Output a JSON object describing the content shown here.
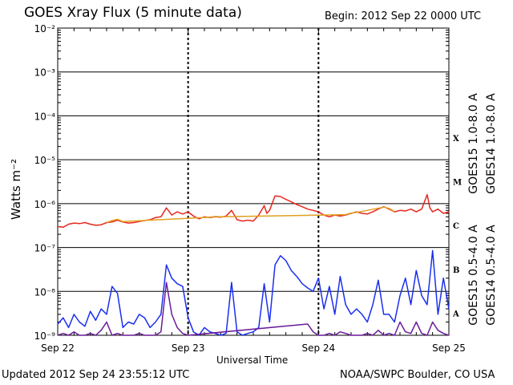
{
  "header": {
    "title": "GOES Xray Flux (5 minute data)",
    "begin": "Begin:  2012 Sep 22 0000 UTC"
  },
  "footer": {
    "updated": "Updated 2012 Sep 24 23:55:12 UTC",
    "credit": "NOAA/SWPC Boulder, CO USA"
  },
  "colors": {
    "goes15_long": "#e8281e",
    "goes14_long": "#e0a020",
    "goes15_short": "#1a2ff0",
    "goes14_short": "#6a1a9a",
    "grid": "#000000"
  },
  "chart_data": {
    "type": "line",
    "title": "GOES Xray Flux (5 minute data)",
    "xlabel": "Universal Time",
    "ylabel": "Watts m⁻²",
    "yscale": "log",
    "ylim": [
      1e-09,
      0.01
    ],
    "xlim": [
      0,
      72
    ],
    "x_unit": "hours since 2012 Sep 22 0000 UTC",
    "x_ticks": [
      {
        "x": 0,
        "label": "Sep 22"
      },
      {
        "x": 24,
        "label": "Sep 23"
      },
      {
        "x": 48,
        "label": "Sep 24"
      },
      {
        "x": 72,
        "label": "Sep 25"
      }
    ],
    "y_ticks": [
      {
        "exp": -9,
        "label": "10⁻⁹"
      },
      {
        "exp": -8,
        "label": "10⁻⁸"
      },
      {
        "exp": -7,
        "label": "10⁻⁷"
      },
      {
        "exp": -6,
        "label": "10⁻⁶"
      },
      {
        "exp": -5,
        "label": "10⁻⁵"
      },
      {
        "exp": -4,
        "label": "10⁻⁴"
      },
      {
        "exp": -3,
        "label": "10⁻³"
      },
      {
        "exp": -2,
        "label": "10⁻²"
      }
    ],
    "flare_classes": [
      {
        "label": "A",
        "exp": -8
      },
      {
        "label": "B",
        "exp": -7
      },
      {
        "label": "C",
        "exp": -6
      },
      {
        "label": "M",
        "exp": -5
      },
      {
        "label": "X",
        "exp": -4
      }
    ],
    "grid": true,
    "legend_position": "right",
    "series": [
      {
        "name": "GOES15 1.0-8.0 A",
        "color": "#e8281e",
        "x": [
          0,
          1,
          2,
          3,
          4,
          5,
          6,
          7,
          8,
          9,
          10,
          11,
          12,
          13,
          14,
          15,
          16,
          17,
          18,
          19,
          20,
          21,
          22,
          23,
          24,
          25,
          26,
          27,
          28,
          29,
          30,
          31,
          32,
          33,
          34,
          35,
          36,
          37,
          38,
          38.5,
          39,
          40,
          41,
          42,
          43,
          44,
          45,
          46,
          47,
          48,
          49,
          50,
          51,
          52,
          53,
          54,
          55,
          56,
          57,
          58,
          59,
          60,
          61,
          62,
          63,
          64,
          65,
          66,
          67,
          68,
          68.5,
          69,
          70,
          71,
          72
        ],
        "y": [
          3e-07,
          2.9e-07,
          3.4e-07,
          3.6e-07,
          3.5e-07,
          3.7e-07,
          3.4e-07,
          3.2e-07,
          3.3e-07,
          3.7e-07,
          3.8e-07,
          4.2e-07,
          3.8e-07,
          3.6e-07,
          3.7e-07,
          3.9e-07,
          4.1e-07,
          4.3e-07,
          4.8e-07,
          5e-07,
          8e-07,
          5.5e-07,
          6.5e-07,
          5.8e-07,
          6.5e-07,
          5.2e-07,
          4.5e-07,
          5e-07,
          4.8e-07,
          5e-07,
          4.9e-07,
          5.2e-07,
          7e-07,
          4.3e-07,
          4e-07,
          4.2e-07,
          4e-07,
          5.5e-07,
          9e-07,
          6e-07,
          7e-07,
          1.5e-06,
          1.45e-06,
          1.25e-06,
          1.1e-06,
          9.5e-07,
          8.5e-07,
          7.5e-07,
          7e-07,
          6.5e-07,
          5.5e-07,
          5e-07,
          5.5e-07,
          5.2e-07,
          5.5e-07,
          6e-07,
          6.5e-07,
          6e-07,
          5.8e-07,
          6.5e-07,
          7.5e-07,
          8.5e-07,
          7.5e-07,
          6.5e-07,
          7e-07,
          6.8e-07,
          7.5e-07,
          6.5e-07,
          7.5e-07,
          1.6e-06,
          8e-07,
          6.5e-07,
          7.5e-07,
          6e-07,
          6.5e-07
        ]
      },
      {
        "name": "GOES14 1.0-8.0 A",
        "color": "#e0a020",
        "x": [
          9,
          10,
          11,
          12,
          28,
          29,
          30,
          53,
          54,
          55,
          60,
          61,
          62
        ],
        "y": [
          3.7e-07,
          4.1e-07,
          4.4e-07,
          3.9e-07,
          4.9e-07,
          5.1e-07,
          5e-07,
          5.6e-07,
          6.1e-07,
          6.3e-07,
          8.3e-07,
          7.8e-07,
          6.6e-07
        ]
      },
      {
        "name": "GOES15 0.5-4.0 A",
        "color": "#1a2ff0",
        "x": [
          0,
          1,
          2,
          3,
          4,
          5,
          6,
          7,
          8,
          9,
          10,
          11,
          12,
          13,
          14,
          15,
          16,
          17,
          18,
          19,
          20,
          21,
          22,
          23,
          24,
          25,
          26,
          27,
          28,
          29,
          30,
          31,
          32,
          33,
          34,
          35,
          36,
          37,
          38,
          39,
          40,
          41,
          42,
          43,
          44,
          45,
          46,
          47,
          48,
          49,
          50,
          51,
          52,
          53,
          54,
          55,
          56,
          57,
          58,
          59,
          60,
          61,
          62,
          63,
          64,
          65,
          66,
          67,
          68,
          69,
          70,
          71,
          72
        ],
        "y": [
          1.8e-09,
          2.5e-09,
          1.5e-09,
          3e-09,
          2e-09,
          1.6e-09,
          3.5e-09,
          2.2e-09,
          4e-09,
          3e-09,
          1.3e-08,
          9e-09,
          1.5e-09,
          2e-09,
          1.8e-09,
          3e-09,
          2.5e-09,
          1.5e-09,
          2e-09,
          3e-09,
          4e-08,
          2e-08,
          1.5e-08,
          1.3e-08,
          2.5e-09,
          1.2e-09,
          1e-09,
          1.5e-09,
          1.2e-09,
          1.1e-09,
          1e-09,
          1.1e-09,
          1.6e-08,
          1.2e-09,
          1e-09,
          1.1e-09,
          1.2e-09,
          1.5e-09,
          1.5e-08,
          2e-09,
          4e-08,
          6.5e-08,
          5e-08,
          3e-08,
          2.2e-08,
          1.5e-08,
          1.2e-08,
          1e-08,
          2e-08,
          4e-09,
          1.3e-08,
          3e-09,
          2.2e-08,
          5e-09,
          3e-09,
          4e-09,
          3e-09,
          2e-09,
          5e-09,
          1.8e-08,
          3e-09,
          3e-09,
          2e-09,
          8e-09,
          2e-08,
          5e-09,
          3e-08,
          8e-09,
          5e-09,
          8.5e-08,
          3e-09,
          2e-08,
          4e-09
        ]
      },
      {
        "name": "GOES14 0.5-4.0 A",
        "color": "#6a1a9a",
        "x": [
          0,
          1,
          2,
          3,
          4,
          5,
          6,
          7,
          8,
          9,
          10,
          11,
          12,
          13,
          14,
          15,
          16,
          17,
          18,
          19,
          20,
          21,
          22,
          23,
          24,
          46,
          47,
          48,
          49,
          50,
          51,
          52,
          53,
          54,
          55,
          56,
          57,
          58,
          59,
          60,
          61,
          62,
          63,
          64,
          65,
          66,
          67,
          68,
          69,
          70,
          71,
          72
        ],
        "y": [
          1e-09,
          1.1e-09,
          1e-09,
          1.2e-09,
          1e-09,
          1e-09,
          1.1e-09,
          1e-09,
          1.3e-09,
          2e-09,
          1e-09,
          1.1e-09,
          1e-09,
          1e-09,
          1e-09,
          1.1e-09,
          1e-09,
          1e-09,
          1e-09,
          1.2e-09,
          1.6e-08,
          3e-09,
          1.5e-09,
          1.1e-09,
          1e-09,
          1.8e-09,
          1.2e-09,
          1e-09,
          1e-09,
          1.1e-09,
          1e-09,
          1.2e-09,
          1.1e-09,
          1e-09,
          1e-09,
          1e-09,
          1.1e-09,
          1e-09,
          1.3e-09,
          1e-09,
          1.1e-09,
          1e-09,
          2e-09,
          1.2e-09,
          1.1e-09,
          2e-09,
          1.1e-09,
          1e-09,
          2e-09,
          1.3e-09,
          1.1e-09,
          1e-09
        ]
      }
    ]
  }
}
